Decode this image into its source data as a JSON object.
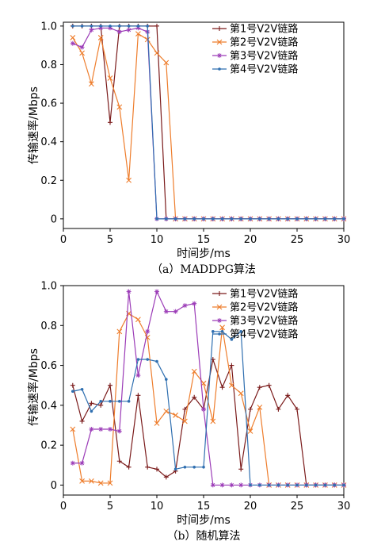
{
  "chart_data": [
    {
      "type": "line",
      "caption": "（a）MADDPG算法",
      "xlabel": "时间步/ms",
      "ylabel": "传输速率/Mbps",
      "xlim": [
        0,
        30
      ],
      "ylim": [
        -0.05,
        1.02
      ],
      "xticks": [
        0,
        5,
        10,
        15,
        20,
        25,
        30
      ],
      "yticks": [
        0,
        0.2,
        0.4,
        0.6,
        0.8,
        1.0
      ],
      "legend_position": "top-right",
      "x": [
        1,
        2,
        3,
        4,
        5,
        6,
        7,
        8,
        9,
        10,
        11,
        12,
        13,
        14,
        15,
        16,
        17,
        18,
        19,
        20,
        21,
        22,
        23,
        24,
        25,
        26,
        27,
        28,
        29,
        30
      ],
      "series": [
        {
          "name": "第1号V2V链路",
          "color": "#7a1a1a",
          "marker": "plus",
          "values": [
            1.0,
            1.0,
            1.0,
            1.0,
            0.5,
            1.0,
            1.0,
            1.0,
            1.0,
            1.0,
            0,
            0,
            0,
            0,
            0,
            0,
            0,
            0,
            0,
            0,
            0,
            0,
            0,
            0,
            0,
            0,
            0,
            0,
            0,
            0
          ]
        },
        {
          "name": "第2号V2V链路",
          "color": "#ee7d2c",
          "marker": "x",
          "values": [
            0.94,
            0.86,
            0.7,
            0.94,
            0.73,
            0.58,
            0.2,
            0.96,
            0.93,
            0.86,
            0.81,
            0,
            0,
            0,
            0,
            0,
            0,
            0,
            0,
            0,
            0,
            0,
            0,
            0,
            0,
            0,
            0,
            0,
            0,
            0
          ]
        },
        {
          "name": "第3号V2V链路",
          "color": "#9b3bb7",
          "marker": "star",
          "values": [
            0.91,
            0.89,
            0.98,
            0.99,
            0.99,
            0.97,
            0.98,
            0.99,
            0.97,
            0,
            0,
            0,
            0,
            0,
            0,
            0,
            0,
            0,
            0,
            0,
            0,
            0,
            0,
            0,
            0,
            0,
            0,
            0,
            0,
            0
          ]
        },
        {
          "name": "第4号V2V链路",
          "color": "#2f6fb0",
          "marker": "dot",
          "values": [
            1.0,
            1.0,
            1.0,
            1.0,
            1.0,
            1.0,
            1.0,
            1.0,
            1.0,
            0,
            0,
            0,
            0,
            0,
            0,
            0,
            0,
            0,
            0,
            0,
            0,
            0,
            0,
            0,
            0,
            0,
            0,
            0,
            0,
            0
          ]
        }
      ]
    },
    {
      "type": "line",
      "caption": "（b）随机算法",
      "xlabel": "时间步/ms",
      "ylabel": "传输速率/Mbps",
      "xlim": [
        0,
        30
      ],
      "ylim": [
        -0.05,
        1.0
      ],
      "xticks": [
        0,
        5,
        10,
        15,
        20,
        25,
        30
      ],
      "yticks": [
        0,
        0.2,
        0.4,
        0.6,
        0.8,
        1.0
      ],
      "legend_position": "top-right",
      "x": [
        1,
        2,
        3,
        4,
        5,
        6,
        7,
        8,
        9,
        10,
        11,
        12,
        13,
        14,
        15,
        16,
        17,
        18,
        19,
        20,
        21,
        22,
        23,
        24,
        25,
        26,
        27,
        28,
        29,
        30
      ],
      "series": [
        {
          "name": "第1号V2V链路",
          "color": "#7a1a1a",
          "marker": "plus",
          "values": [
            0.5,
            0.32,
            0.41,
            0.4,
            0.5,
            0.12,
            0.09,
            0.45,
            0.09,
            0.08,
            0.04,
            0.07,
            0.38,
            0.44,
            0.38,
            0.63,
            0.49,
            0.6,
            0.08,
            0.38,
            0.49,
            0.5,
            0.38,
            0.45,
            0.38,
            0,
            0,
            0,
            0,
            0
          ]
        },
        {
          "name": "第2号V2V链路",
          "color": "#ee7d2c",
          "marker": "x",
          "values": [
            0.28,
            0.02,
            0.02,
            0.01,
            0.01,
            0.77,
            0.86,
            0.83,
            0.74,
            0.31,
            0.37,
            0.35,
            0.32,
            0.57,
            0.51,
            0.32,
            0.79,
            0.5,
            0.46,
            0.27,
            0.39,
            0,
            0,
            0,
            0,
            0,
            0,
            0,
            0,
            0
          ]
        },
        {
          "name": "第3号V2V链路",
          "color": "#9b3bb7",
          "marker": "star",
          "values": [
            0.11,
            0.11,
            0.28,
            0.28,
            0.28,
            0.27,
            0.97,
            0.55,
            0.77,
            0.97,
            0.87,
            0.87,
            0.9,
            0.91,
            0.38,
            0,
            0,
            0,
            0,
            0,
            0,
            0,
            0,
            0,
            0,
            0,
            0,
            0,
            0,
            0
          ]
        },
        {
          "name": "第4号V2V链路",
          "color": "#2f6fb0",
          "marker": "dot",
          "values": [
            0.47,
            0.48,
            0.37,
            0.42,
            0.42,
            0.42,
            0.42,
            0.63,
            0.63,
            0.62,
            0.53,
            0.08,
            0.09,
            0.09,
            0.09,
            0.77,
            0.77,
            0.73,
            0.77,
            0,
            0,
            0,
            0,
            0,
            0,
            0,
            0,
            0,
            0,
            0
          ]
        }
      ]
    }
  ]
}
